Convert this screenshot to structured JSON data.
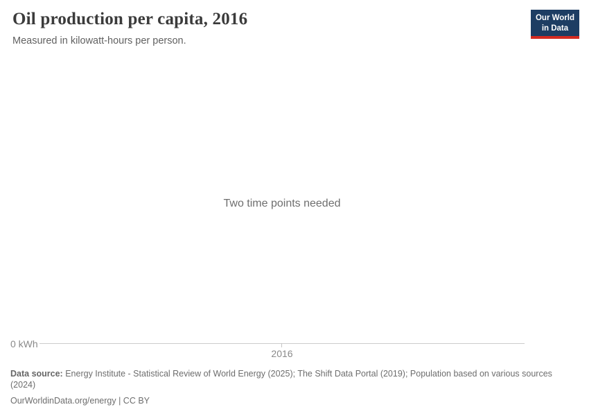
{
  "header": {
    "title": "Oil production per capita, 2016",
    "subtitle": "Measured in kilowatt-hours per person.",
    "logo": {
      "line1": "Our World",
      "line2": "in Data"
    }
  },
  "plot": {
    "empty_message": "Two time points needed"
  },
  "axis": {
    "y_zero_label": "0 kWh",
    "x_tick_label": "2016"
  },
  "footer": {
    "data_source_label": "Data source:",
    "data_source_text": "Energy Institute - Statistical Review of World Energy (2025); The Shift Data Portal (2019); Population based on various sources (2024)",
    "citation": "OurWorldinData.org/energy | CC BY"
  },
  "colors": {
    "logo_background": "#1d3d63",
    "logo_red_bar": "#d42b21",
    "axis_line": "#cccccc",
    "title_text": "#3b3b3b",
    "muted_text": "#6d6d6d"
  },
  "chart_data": {
    "type": "line",
    "title": "Oil production per capita, 2016",
    "subtitle": "Measured in kilowatt-hours per person.",
    "series": [],
    "message": "Two time points needed",
    "x_ticks": [
      "2016"
    ],
    "y_ticks": [
      "0 kWh"
    ],
    "xlabel": "",
    "ylabel": "kilowatt-hours per person",
    "grid": false,
    "legend": "none"
  }
}
